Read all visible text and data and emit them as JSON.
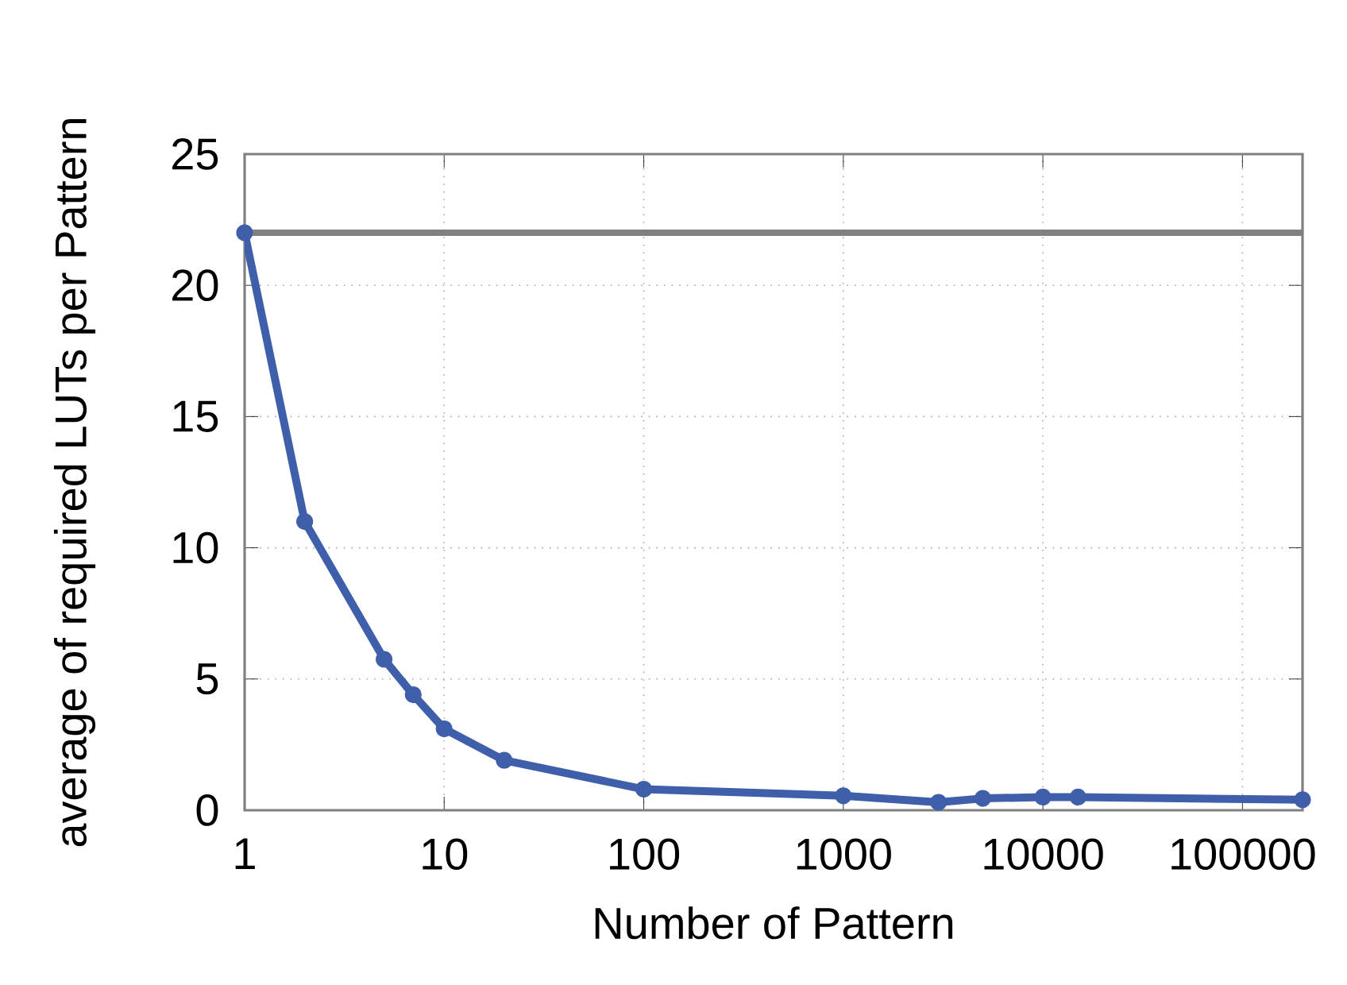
{
  "chart_data": {
    "type": "line",
    "xlabel": "Number of Pattern",
    "ylabel": "average of required LUTs per Pattern",
    "x": [
      1,
      2,
      5,
      7,
      10,
      20,
      100,
      1000,
      3000,
      5000,
      10000,
      15000,
      200000
    ],
    "series": [
      {
        "color": "#3f5faa",
        "values": [
          22,
          11,
          5.75,
          4.4,
          3.1,
          1.9,
          0.8,
          0.55,
          0.3,
          0.45,
          0.5,
          0.5,
          0.4
        ]
      }
    ],
    "log": "x",
    "xlim": [
      1,
      200000
    ],
    "xticks": [
      1,
      10,
      100,
      1000,
      10000,
      100000
    ],
    "ylim": [
      0,
      25
    ],
    "yticks": [
      0,
      5,
      10,
      15,
      20,
      25
    ],
    "grid": true,
    "marker": "circle",
    "line_style": "solid",
    "ref_lines": [
      {
        "axis": "y",
        "value": 22,
        "color": "#808080"
      }
    ]
  }
}
